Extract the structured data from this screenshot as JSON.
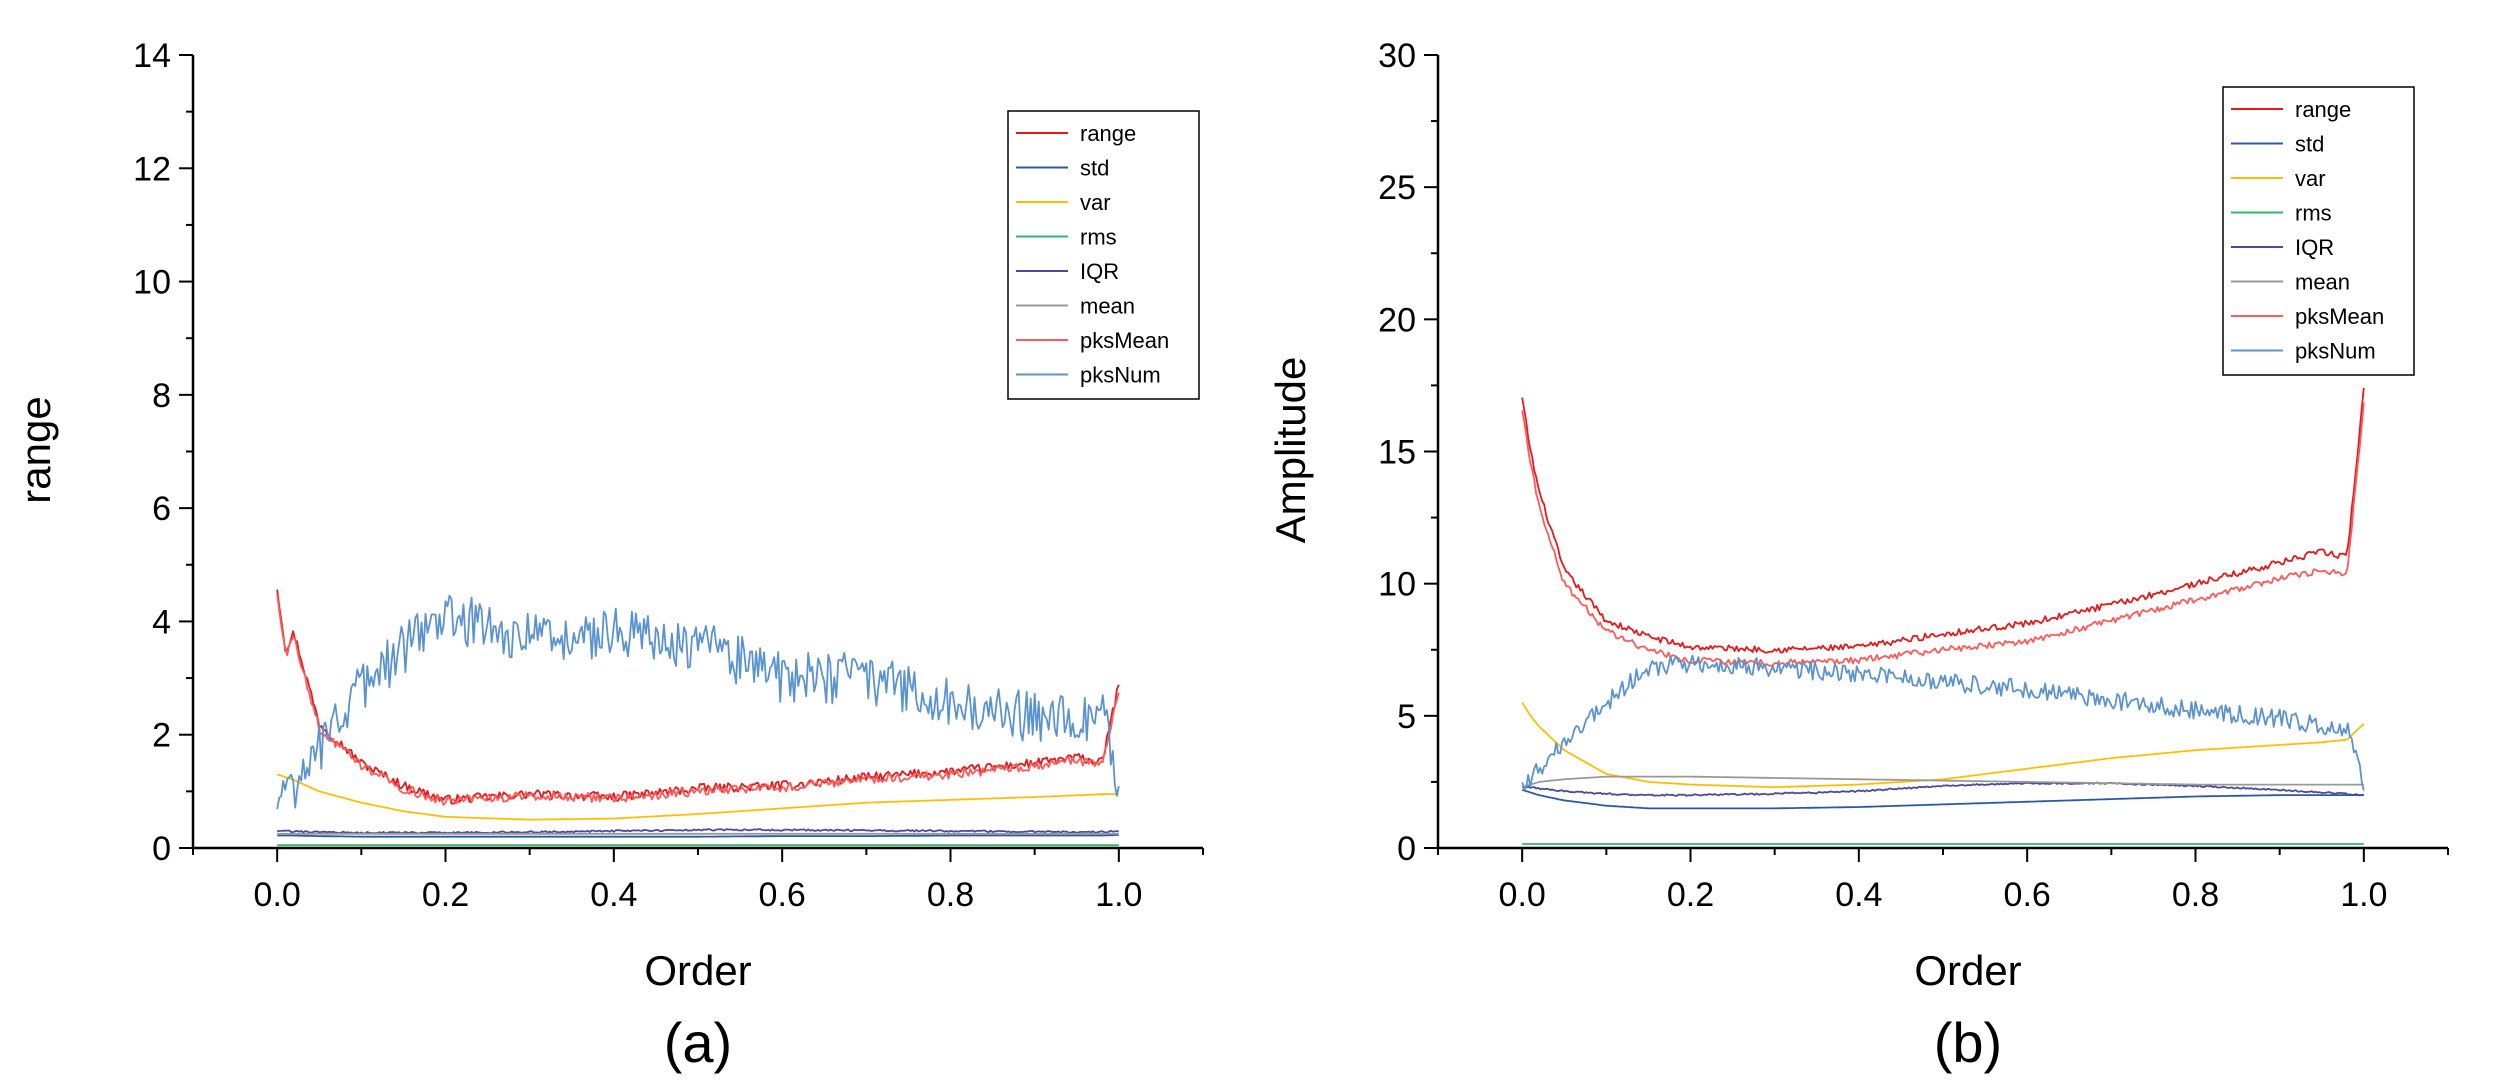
{
  "chart_data": [
    {
      "type": "line",
      "panel_label": "(a)",
      "xlabel": "Order",
      "ylabel": "range",
      "xlim": [
        -0.1,
        1.1
      ],
      "ylim": [
        0,
        14
      ],
      "x_ticks": [
        0.0,
        0.2,
        0.4,
        0.6,
        0.8,
        1.0
      ],
      "x_tick_labels": [
        "0.0",
        "0.2",
        "0.4",
        "0.6",
        "0.8",
        "1.0"
      ],
      "y_ticks": [
        0,
        2,
        4,
        6,
        8,
        10,
        12,
        14
      ],
      "y_tick_labels": [
        "0",
        "2",
        "4",
        "6",
        "8",
        "10",
        "12",
        "14"
      ],
      "legend_position": "top-right",
      "x": [
        0.0,
        0.01,
        0.02,
        0.05,
        0.1,
        0.15,
        0.2,
        0.3,
        0.4,
        0.5,
        0.6,
        0.7,
        0.8,
        0.9,
        0.95,
        0.98,
        1.0
      ],
      "series": [
        {
          "name": "range",
          "color": "#e41a1c",
          "noise": 0.08,
          "values": [
            4.6,
            3.5,
            3.8,
            2.2,
            1.5,
            1.1,
            0.85,
            0.95,
            0.9,
            1.05,
            1.1,
            1.25,
            1.35,
            1.5,
            1.6,
            1.5,
            2.9
          ]
        },
        {
          "name": "std",
          "color": "#2c5aa0",
          "noise": 0.0,
          "values": [
            0.22,
            0.22,
            0.22,
            0.21,
            0.2,
            0.2,
            0.2,
            0.2,
            0.2,
            0.2,
            0.21,
            0.21,
            0.22,
            0.22,
            0.22,
            0.22,
            0.23
          ]
        },
        {
          "name": "var",
          "color": "#ffbf00",
          "noise": 0.0,
          "values": [
            1.3,
            1.25,
            1.2,
            1.0,
            0.8,
            0.65,
            0.55,
            0.5,
            0.52,
            0.6,
            0.7,
            0.8,
            0.85,
            0.9,
            0.93,
            0.95,
            0.95
          ]
        },
        {
          "name": "rms",
          "color": "#2fb86e",
          "noise": 0.0,
          "values": [
            0.05,
            0.05,
            0.05,
            0.05,
            0.05,
            0.05,
            0.05,
            0.05,
            0.05,
            0.05,
            0.05,
            0.05,
            0.05,
            0.05,
            0.05,
            0.05,
            0.05
          ]
        },
        {
          "name": "IQR",
          "color": "#4b4b9a",
          "noise": 0.015,
          "values": [
            0.3,
            0.3,
            0.29,
            0.28,
            0.27,
            0.27,
            0.27,
            0.28,
            0.3,
            0.32,
            0.32,
            0.31,
            0.3,
            0.29,
            0.28,
            0.28,
            0.3
          ]
        },
        {
          "name": "mean",
          "color": "#999999",
          "noise": 0.0,
          "values": [
            0.25,
            0.25,
            0.25,
            0.25,
            0.25,
            0.25,
            0.25,
            0.25,
            0.25,
            0.25,
            0.25,
            0.25,
            0.25,
            0.25,
            0.25,
            0.25,
            0.25
          ]
        },
        {
          "name": "pksMean",
          "color": "#ff5a5a",
          "noise": 0.08,
          "values": [
            4.5,
            3.4,
            3.7,
            2.1,
            1.45,
            1.05,
            0.82,
            0.92,
            0.88,
            1.0,
            1.07,
            1.2,
            1.3,
            1.45,
            1.55,
            1.45,
            2.8
          ]
        },
        {
          "name": "pksNum",
          "color": "#5b93cf",
          "noise": 0.45,
          "values": [
            0.8,
            0.9,
            1.1,
            1.8,
            2.8,
            3.5,
            4.1,
            3.7,
            3.8,
            3.6,
            3.0,
            3.0,
            2.6,
            2.3,
            2.2,
            2.5,
            1.0
          ]
        }
      ]
    },
    {
      "type": "line",
      "panel_label": "(b)",
      "xlabel": "Order",
      "ylabel": "Amplitude",
      "xlim": [
        -0.1,
        1.1
      ],
      "ylim": [
        0,
        30
      ],
      "x_ticks": [
        0.0,
        0.2,
        0.4,
        0.6,
        0.8,
        1.0
      ],
      "x_tick_labels": [
        "0.0",
        "0.2",
        "0.4",
        "0.6",
        "0.8",
        "1.0"
      ],
      "y_ticks": [
        0,
        5,
        10,
        15,
        20,
        25,
        30
      ],
      "y_tick_labels": [
        "0",
        "5",
        "10",
        "15",
        "20",
        "25",
        "30"
      ],
      "legend_position": "top-right",
      "x": [
        0.0,
        0.01,
        0.02,
        0.05,
        0.1,
        0.15,
        0.2,
        0.3,
        0.4,
        0.5,
        0.6,
        0.7,
        0.8,
        0.9,
        0.95,
        0.98,
        1.0
      ],
      "series": [
        {
          "name": "range",
          "color": "#e41a1c",
          "noise": 0.12,
          "values": [
            17.0,
            15.0,
            13.5,
            10.5,
            8.6,
            8.0,
            7.6,
            7.5,
            7.6,
            8.1,
            8.5,
            9.2,
            10.0,
            10.8,
            11.2,
            11.0,
            17.3
          ]
        },
        {
          "name": "std",
          "color": "#2c5aa0",
          "noise": 0.0,
          "values": [
            2.2,
            2.1,
            2.0,
            1.8,
            1.6,
            1.5,
            1.5,
            1.5,
            1.55,
            1.65,
            1.75,
            1.85,
            1.95,
            2.0,
            2.0,
            2.0,
            2.0
          ]
        },
        {
          "name": "var",
          "color": "#ffbf00",
          "noise": 0.0,
          "values": [
            5.5,
            5.0,
            4.6,
            3.7,
            2.8,
            2.5,
            2.4,
            2.3,
            2.4,
            2.6,
            3.0,
            3.4,
            3.7,
            3.9,
            4.0,
            4.1,
            4.7
          ]
        },
        {
          "name": "rms",
          "color": "#2fb86e",
          "noise": 0.0,
          "values": [
            0.15,
            0.15,
            0.15,
            0.15,
            0.15,
            0.15,
            0.15,
            0.15,
            0.15,
            0.15,
            0.15,
            0.15,
            0.15,
            0.15,
            0.15,
            0.15,
            0.15
          ]
        },
        {
          "name": "IQR",
          "color": "#4b4b9a",
          "noise": 0.03,
          "values": [
            2.3,
            2.3,
            2.25,
            2.15,
            2.05,
            2.0,
            2.0,
            2.05,
            2.15,
            2.35,
            2.45,
            2.45,
            2.35,
            2.2,
            2.1,
            2.05,
            2.0
          ]
        },
        {
          "name": "mean",
          "color": "#999999",
          "noise": 0.0,
          "values": [
            2.3,
            2.4,
            2.5,
            2.6,
            2.7,
            2.7,
            2.7,
            2.65,
            2.6,
            2.55,
            2.5,
            2.45,
            2.4,
            2.4,
            2.4,
            2.4,
            2.4
          ]
        },
        {
          "name": "pksMean",
          "color": "#ff5a5a",
          "noise": 0.12,
          "values": [
            16.5,
            14.5,
            13.0,
            10.0,
            8.2,
            7.5,
            7.1,
            7.0,
            7.1,
            7.5,
            7.8,
            8.6,
            9.4,
            10.2,
            10.5,
            10.3,
            16.8
          ]
        },
        {
          "name": "pksNum",
          "color": "#5b93cf",
          "noise": 0.35,
          "values": [
            2.3,
            2.6,
            3.0,
            4.0,
            5.5,
            6.8,
            7.0,
            6.8,
            6.6,
            6.3,
            6.0,
            5.6,
            5.2,
            4.9,
            4.6,
            4.5,
            2.4
          ]
        }
      ]
    }
  ]
}
